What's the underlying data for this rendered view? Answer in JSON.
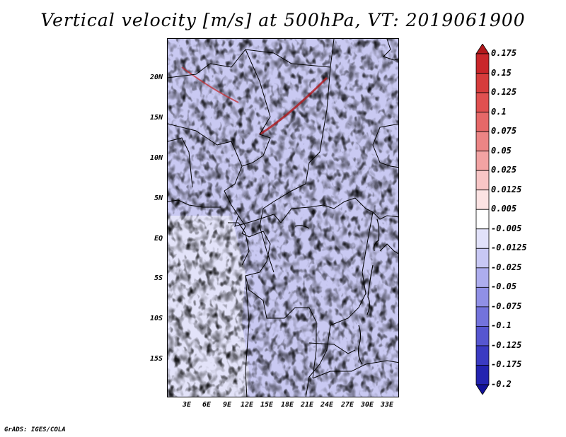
{
  "title": "Vertical velocity [m/s] at 500hPa, VT: 2019061900",
  "lat_labels": [
    "20N",
    "15N",
    "10N",
    "5N",
    "EQ",
    "5S",
    "10S",
    "15S"
  ],
  "lon_labels": [
    "3E",
    "6E",
    "9E",
    "12E",
    "15E",
    "18E",
    "21E",
    "24E",
    "27E",
    "30E",
    "33E"
  ],
  "colorbar": {
    "labels": [
      "0.175",
      "0.15",
      "0.125",
      "0.1",
      "0.075",
      "0.05",
      "0.025",
      "0.0125",
      "0.005",
      "-0.005",
      "-0.0125",
      "-0.025",
      "-0.05",
      "-0.075",
      "-0.1",
      "-0.125",
      "-0.175",
      "-0.2"
    ],
    "colors": [
      "#b2181b",
      "#c9262a",
      "#d63c3c",
      "#e05050",
      "#e66868",
      "#ec8585",
      "#f2a3a3",
      "#f8c6c6",
      "#fce3e3",
      "#ffffff",
      "#e2e2fa",
      "#c8c8f4",
      "#adadee",
      "#9090e6",
      "#7373dc",
      "#5656d0",
      "#3a3ac2",
      "#2323b0",
      "#12129a"
    ]
  },
  "footer": "GrADS: IGES/COLA"
}
